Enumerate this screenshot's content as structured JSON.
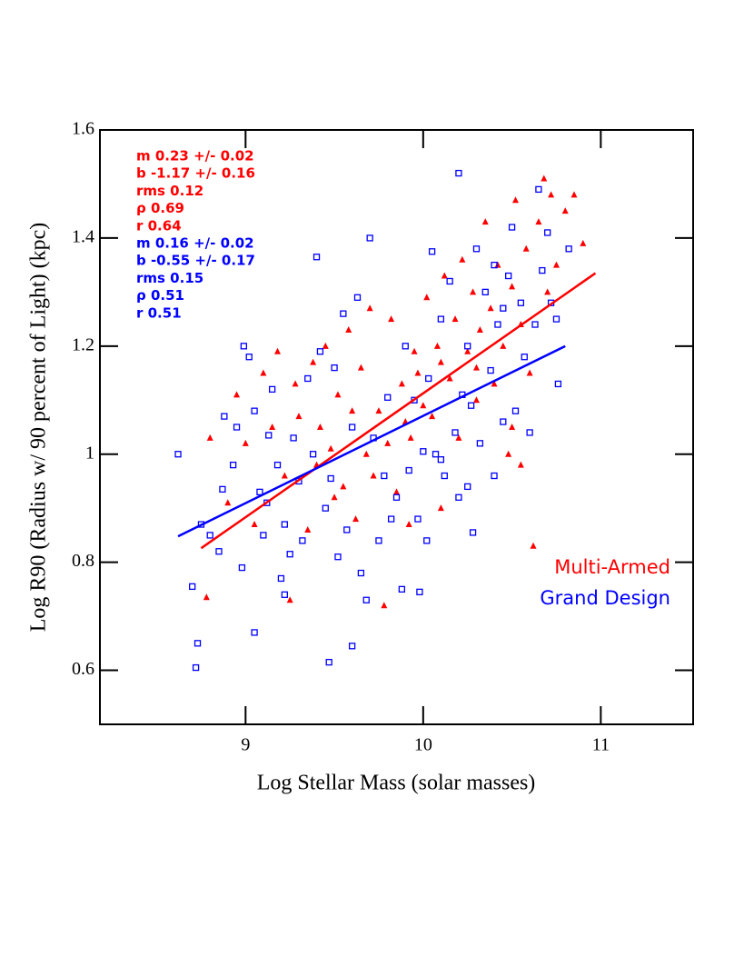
{
  "chart_data": {
    "type": "scatter",
    "x_label": "Log Stellar Mass (solar masses)",
    "y_label": "Log R90 (Radius w/ 90 percent of Light) (kpc)",
    "xlim": [
      8.18,
      11.52
    ],
    "ylim": [
      0.5,
      1.6
    ],
    "xticks": [
      9,
      10,
      11
    ],
    "yticks": [
      0.6,
      0.8,
      1,
      1.2,
      1.4,
      1.6
    ],
    "legend": "lower right",
    "series": [
      {
        "name": "Multi-Armed",
        "color": "#ff0000",
        "marker": "triangle",
        "x": [
          8.78,
          8.8,
          8.9,
          8.95,
          9.0,
          9.05,
          9.1,
          9.15,
          9.18,
          9.22,
          9.25,
          9.28,
          9.3,
          9.35,
          9.38,
          9.4,
          9.42,
          9.45,
          9.48,
          9.5,
          9.52,
          9.55,
          9.58,
          9.6,
          9.62,
          9.65,
          9.68,
          9.7,
          9.72,
          9.75,
          9.78,
          9.8,
          9.82,
          9.85,
          9.88,
          9.9,
          9.92,
          9.95,
          9.97,
          10.0,
          10.02,
          10.05,
          10.08,
          10.1,
          10.12,
          10.15,
          10.18,
          10.2,
          10.22,
          10.25,
          10.28,
          10.3,
          10.32,
          10.35,
          10.38,
          10.4,
          10.42,
          10.45,
          10.48,
          10.5,
          10.52,
          10.55,
          10.58,
          10.6,
          10.62,
          10.65,
          10.68,
          10.7,
          10.72,
          10.75,
          10.8,
          10.85,
          10.9,
          10.5,
          10.55,
          10.3,
          10.1,
          9.93
        ],
        "values": [
          0.735,
          1.03,
          0.91,
          1.11,
          1.02,
          0.87,
          1.15,
          1.05,
          1.19,
          0.96,
          0.73,
          1.13,
          1.07,
          0.86,
          1.17,
          0.98,
          1.05,
          1.2,
          1.01,
          0.92,
          1.11,
          0.94,
          1.23,
          1.08,
          0.88,
          1.16,
          1.0,
          1.27,
          0.96,
          1.08,
          0.72,
          1.02,
          1.25,
          0.93,
          1.13,
          1.06,
          0.87,
          1.19,
          1.15,
          1.09,
          1.29,
          1.07,
          1.2,
          0.9,
          1.33,
          1.14,
          1.25,
          1.03,
          1.36,
          1.19,
          1.3,
          1.1,
          1.23,
          1.43,
          1.27,
          1.13,
          1.35,
          1.2,
          1.0,
          1.31,
          1.47,
          1.24,
          1.38,
          1.15,
          0.83,
          1.43,
          1.51,
          1.3,
          1.48,
          1.35,
          1.45,
          1.48,
          1.39,
          1.05,
          0.98,
          1.16,
          1.17,
          1.03
        ]
      },
      {
        "name": "Grand Design",
        "color": "#0000ff",
        "marker": "square",
        "x": [
          8.62,
          8.72,
          8.73,
          8.7,
          8.75,
          8.8,
          8.85,
          8.87,
          8.88,
          8.93,
          8.95,
          8.98,
          8.99,
          9.02,
          9.05,
          9.05,
          9.08,
          9.1,
          9.12,
          9.13,
          9.15,
          9.18,
          9.2,
          9.22,
          9.22,
          9.25,
          9.27,
          9.3,
          9.32,
          9.35,
          9.38,
          9.4,
          9.42,
          9.45,
          9.47,
          9.48,
          9.5,
          9.52,
          9.55,
          9.57,
          9.6,
          9.6,
          9.63,
          9.65,
          9.68,
          9.7,
          9.72,
          9.75,
          9.78,
          9.8,
          9.82,
          9.85,
          9.88,
          9.9,
          9.92,
          9.95,
          9.97,
          9.98,
          10.0,
          10.02,
          10.03,
          10.05,
          10.07,
          10.1,
          10.12,
          10.15,
          10.18,
          10.2,
          10.2,
          10.22,
          10.25,
          10.27,
          10.28,
          10.3,
          10.32,
          10.35,
          10.38,
          10.4,
          10.42,
          10.45,
          10.48,
          10.5,
          10.52,
          10.55,
          10.57,
          10.6,
          10.63,
          10.65,
          10.67,
          10.7,
          10.72,
          10.75,
          10.76,
          10.82,
          10.4,
          10.45,
          10.25,
          10.1
        ],
        "values": [
          1.0,
          0.605,
          0.65,
          0.755,
          0.87,
          0.85,
          0.82,
          0.935,
          1.07,
          0.98,
          1.05,
          0.79,
          1.2,
          1.18,
          1.08,
          0.67,
          0.93,
          0.85,
          0.91,
          1.035,
          1.12,
          0.98,
          0.77,
          0.74,
          0.87,
          0.815,
          1.03,
          0.95,
          0.84,
          1.14,
          1.0,
          1.365,
          1.19,
          0.9,
          0.615,
          0.955,
          1.16,
          0.81,
          1.26,
          0.86,
          0.645,
          1.05,
          1.29,
          0.78,
          0.73,
          1.4,
          1.03,
          0.84,
          0.96,
          1.105,
          0.88,
          0.92,
          0.75,
          1.2,
          0.97,
          1.1,
          0.88,
          0.745,
          1.005,
          0.84,
          1.14,
          1.375,
          1.0,
          1.25,
          0.96,
          1.32,
          1.04,
          1.52,
          0.92,
          1.11,
          1.2,
          1.09,
          0.855,
          1.38,
          1.02,
          1.3,
          1.155,
          0.96,
          1.24,
          1.06,
          1.33,
          1.42,
          1.08,
          1.28,
          1.18,
          1.04,
          1.24,
          1.49,
          1.34,
          1.41,
          1.28,
          1.25,
          1.13,
          1.38,
          1.35,
          1.27,
          0.94,
          0.99
        ]
      }
    ],
    "fits": [
      {
        "color": "#ff0000",
        "x": [
          8.75,
          10.97
        ],
        "values": [
          0.826,
          1.335
        ]
      },
      {
        "color": "#0000ff",
        "x": [
          8.62,
          10.8
        ],
        "values": [
          0.848,
          1.2
        ]
      }
    ],
    "annotations": [
      {
        "text": "m 0.23 +/- 0.02",
        "color": "#ff0000"
      },
      {
        "text": "b -1.17 +/- 0.16",
        "color": "#ff0000"
      },
      {
        "text": "rms 0.12",
        "color": "#ff0000"
      },
      {
        "text": "ρ 0.69",
        "color": "#ff0000"
      },
      {
        "text": "r 0.64",
        "color": "#ff0000"
      },
      {
        "text": "m 0.16 +/- 0.02",
        "color": "#0000ff"
      },
      {
        "text": "b -0.55 +/- 0.17",
        "color": "#0000ff"
      },
      {
        "text": "rms 0.15",
        "color": "#0000ff"
      },
      {
        "text": "ρ 0.51",
        "color": "#0000ff"
      },
      {
        "text": "r 0.51",
        "color": "#0000ff"
      }
    ]
  }
}
